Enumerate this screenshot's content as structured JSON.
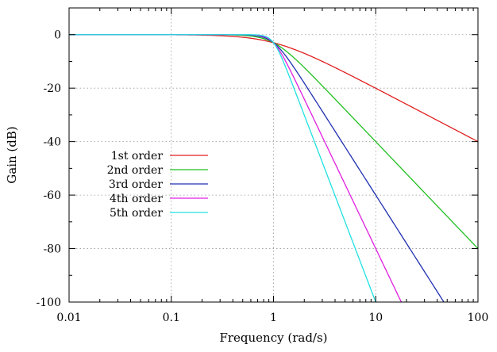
{
  "chart_data": {
    "type": "line",
    "xlabel": "Frequency (rad/s)",
    "ylabel": "Gain (dB)",
    "xscale": "log",
    "xlim": [
      0.01,
      100
    ],
    "ylim": [
      -100,
      10
    ],
    "grid": true,
    "legend_position": "middle-left",
    "x_ticks": [
      {
        "value": 0.01,
        "label": "0.01"
      },
      {
        "value": 0.1,
        "label": "0.1"
      },
      {
        "value": 1,
        "label": "1"
      },
      {
        "value": 10,
        "label": "10"
      },
      {
        "value": 100,
        "label": "100"
      }
    ],
    "y_ticks": [
      {
        "value": 0,
        "label": "0"
      },
      {
        "value": -20,
        "label": "-20"
      },
      {
        "value": -40,
        "label": "-40"
      },
      {
        "value": -60,
        "label": "-60"
      },
      {
        "value": -80,
        "label": "-80"
      },
      {
        "value": -100,
        "label": "-100"
      }
    ],
    "series": [
      {
        "name": "1st order",
        "order": 1,
        "color": "#e02020",
        "x": [
          0.01,
          0.1,
          0.5,
          1,
          2,
          5,
          10,
          100
        ],
        "y": [
          0,
          -0.04,
          -0.97,
          -3.01,
          -6.99,
          -14.15,
          -20.04,
          -40.0
        ]
      },
      {
        "name": "2nd order",
        "order": 2,
        "color": "#20c020",
        "x": [
          0.01,
          0.1,
          0.5,
          1,
          2,
          5,
          10,
          100
        ],
        "y": [
          0,
          0,
          -0.26,
          -3.01,
          -12.3,
          -27.96,
          -40.0,
          -80.0
        ]
      },
      {
        "name": "3rd order",
        "order": 3,
        "color": "#2030b0",
        "x": [
          0.01,
          0.1,
          0.5,
          1,
          2,
          5,
          10,
          46.4
        ],
        "y": [
          0,
          0,
          -0.07,
          -3.01,
          -18.13,
          -41.94,
          -60.0,
          -100.0
        ]
      },
      {
        "name": "4th order",
        "order": 4,
        "color": "#e020e0",
        "x": [
          0.01,
          0.1,
          0.5,
          1,
          2,
          5,
          10,
          17.8
        ],
        "y": [
          0,
          0,
          -0.02,
          -3.01,
          -24.1,
          -55.9,
          -80.0,
          -100.0
        ]
      },
      {
        "name": "5th order",
        "order": 5,
        "color": "#20e0e0",
        "x": [
          0.01,
          0.1,
          0.5,
          1,
          2,
          5,
          10
        ],
        "y": [
          0,
          0,
          0,
          -3.01,
          -30.1,
          -69.9,
          -100.0
        ]
      }
    ]
  }
}
